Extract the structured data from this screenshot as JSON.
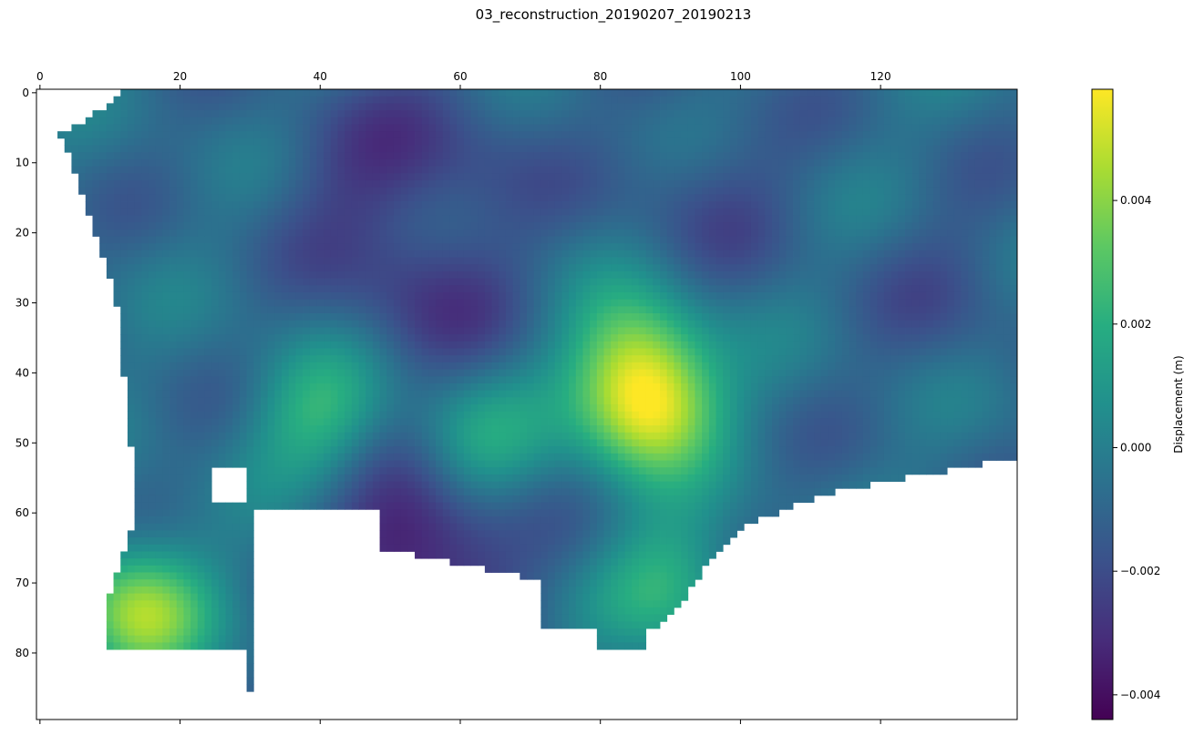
{
  "chart_data": {
    "type": "heatmap",
    "title": "03_reconstruction_20190207_20190213",
    "colormap": "viridis",
    "x_axis": {
      "position": "top",
      "range": [
        0,
        139
      ],
      "ticks": [
        0,
        20,
        40,
        60,
        80,
        100,
        120
      ],
      "tick_labels": [
        "0",
        "20",
        "40",
        "60",
        "80",
        "100",
        "120"
      ],
      "bottom_tick_marks": true,
      "bottom_tick_labels": false
    },
    "y_axis": {
      "inverted": true,
      "range": [
        0,
        89
      ],
      "ticks": [
        0,
        10,
        20,
        30,
        40,
        50,
        60,
        70,
        80
      ],
      "tick_labels": [
        "0",
        "10",
        "20",
        "30",
        "40",
        "50",
        "60",
        "70",
        "80"
      ]
    },
    "colorbar": {
      "label": "Displacement (m)",
      "range": [
        -0.0044,
        0.0058
      ],
      "ticks": [
        -0.004,
        -0.002,
        0.0,
        0.002,
        0.004
      ],
      "tick_labels": [
        "−0.004",
        "−0.002",
        "0.000",
        "0.002",
        "0.004"
      ]
    },
    "features": [
      {
        "x": 14,
        "y": 74,
        "value": 0.0042,
        "description": "bright green-yellow patch lower left"
      },
      {
        "x": 87,
        "y": 45,
        "value": 0.005,
        "description": "yellow high near center right"
      },
      {
        "x": 40,
        "y": 46,
        "value": 0.0022
      },
      {
        "x": 62,
        "y": 51,
        "value": 0.002
      },
      {
        "x": 90,
        "y": 70,
        "value": 0.002
      },
      {
        "x": 85,
        "y": 37,
        "value": 0.0025
      },
      {
        "x": 55,
        "y": 64,
        "value": -0.0043,
        "description": "dark purple low near bottom center"
      },
      {
        "x": 45,
        "y": 12,
        "value": -0.002
      },
      {
        "x": 60,
        "y": 8,
        "value": -0.0018
      },
      {
        "x": 95,
        "y": 14,
        "value": -0.0018
      },
      {
        "x": 55,
        "y": 30,
        "value": -0.0024
      },
      {
        "x": 130,
        "y": 28,
        "value": -0.0015
      }
    ]
  }
}
